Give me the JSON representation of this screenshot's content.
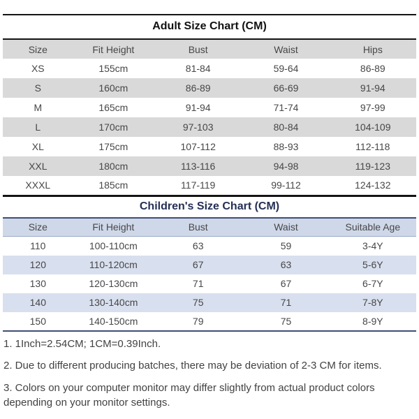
{
  "adult": {
    "title": "Adult Size Chart (CM)",
    "columns": [
      "Size",
      "Fit Height",
      "Bust",
      "Waist",
      "Hips"
    ],
    "rows": [
      [
        "XS",
        "155cm",
        "81-84",
        "59-64",
        "86-89"
      ],
      [
        "S",
        "160cm",
        "86-89",
        "66-69",
        "91-94"
      ],
      [
        "M",
        "165cm",
        "91-94",
        "71-74",
        "97-99"
      ],
      [
        "L",
        "170cm",
        "97-103",
        "80-84",
        "104-109"
      ],
      [
        "XL",
        "175cm",
        "107-112",
        "88-93",
        "112-118"
      ],
      [
        "XXL",
        "180cm",
        "113-116",
        "94-98",
        "119-123"
      ],
      [
        "XXXL",
        "185cm",
        "117-119",
        "99-112",
        "124-132"
      ]
    ]
  },
  "children": {
    "title": "Children's Size Chart (CM)",
    "columns": [
      "Size",
      "Fit Height",
      "Bust",
      "Waist",
      "Suitable Age"
    ],
    "rows": [
      [
        "110",
        "100-110cm",
        "63",
        "59",
        "3-4Y"
      ],
      [
        "120",
        "110-120cm",
        "67",
        "63",
        "5-6Y"
      ],
      [
        "130",
        "120-130cm",
        "71",
        "67",
        "6-7Y"
      ],
      [
        "140",
        "130-140cm",
        "75",
        "71",
        "7-8Y"
      ],
      [
        "150",
        "140-150cm",
        "79",
        "75",
        "8-9Y"
      ]
    ]
  },
  "notes": [
    "1. 1Inch=2.54CM; 1CM=0.39Inch.",
    "2. Due to different producing batches, there may be deviation of 2-3 CM for items.",
    "3. Colors on your computer monitor may differ slightly from actual product colors depending on your monitor settings."
  ],
  "colors": {
    "rule_black": "#141414",
    "rule_navy": "#3e4e74",
    "adult_title_color": "#111111",
    "children_title_color": "#242f55",
    "adult_header_bg": "#d9d9d9",
    "adult_alt_row_bg": "#d9d9d9",
    "children_header_bg": "#cfd8e9",
    "children_alt_row_bg": "#d8dfee",
    "text_color": "#474747",
    "notes_color": "#424242"
  }
}
